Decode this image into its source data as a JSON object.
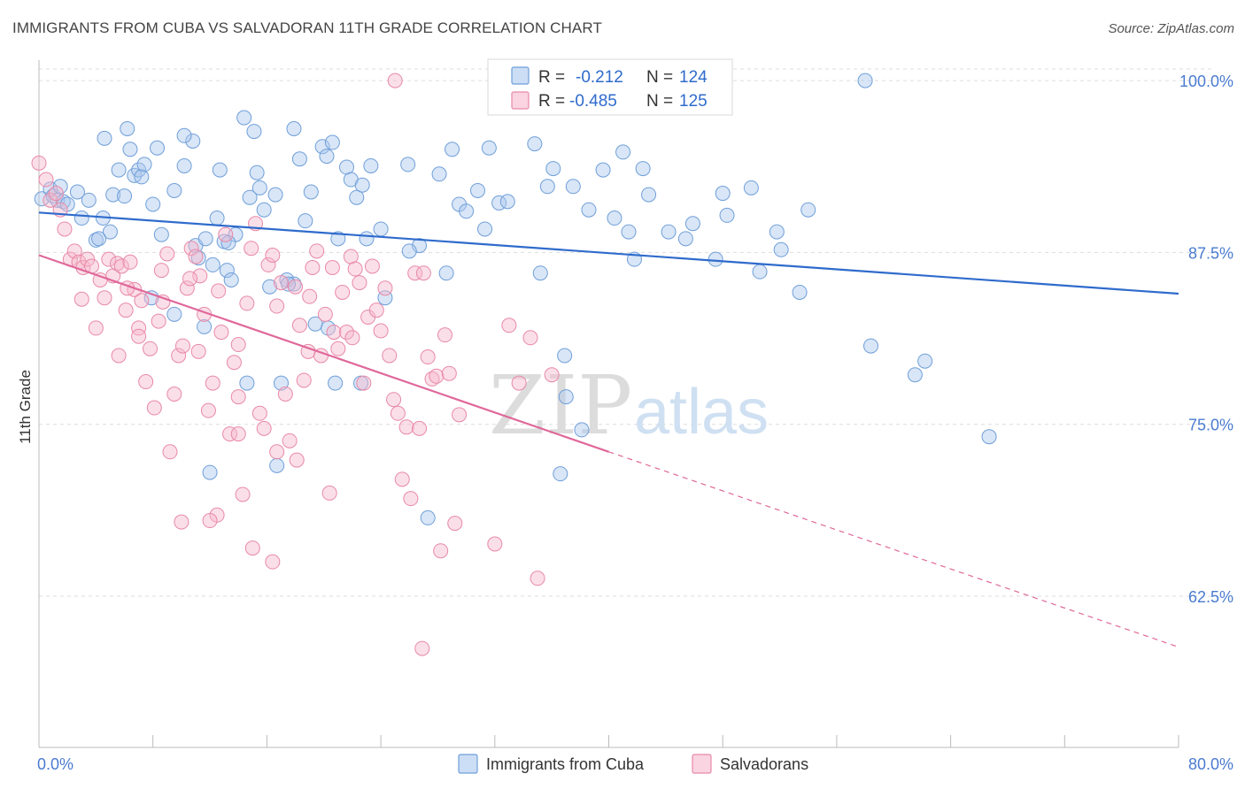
{
  "header": {
    "title": "IMMIGRANTS FROM CUBA VS SALVADORAN 11TH GRADE CORRELATION CHART",
    "source": "Source: ZipAtlas.com"
  },
  "watermark": {
    "zip": "ZIP",
    "atlas": "atlas"
  },
  "legend": {
    "rows": [
      {
        "r_label": "R =",
        "r_value": "-0.212",
        "n_label": "N =",
        "n_value": "124"
      },
      {
        "r_label": "R =",
        "r_value": "-0.485",
        "n_label": "N =",
        "n_value": "125"
      }
    ]
  },
  "bottom_legend": {
    "items": [
      "Immigrants from Cuba",
      "Salvadorans"
    ]
  },
  "colors": {
    "cuba_fill": "#aac8ee",
    "cuba_stroke": "#6f9fd9",
    "cuba_line": "#2f6bcc",
    "salv_fill": "#f6b8cb",
    "salv_stroke": "#e889a8",
    "salv_line": "#e0689a",
    "tick_text": "#4a7bd0",
    "grid": "#dddddd"
  },
  "chart_data": {
    "type": "scatter",
    "title": "IMMIGRANTS FROM CUBA VS SALVADORAN 11TH GRADE CORRELATION CHART",
    "xlabel": "",
    "ylabel": "11th Grade",
    "xlim": [
      0,
      80
    ],
    "ylim": [
      51.5,
      102
    ],
    "y_ticks": [
      {
        "value": 100,
        "label": "100.0%"
      },
      {
        "value": 87.5,
        "label": "87.5%"
      },
      {
        "value": 75,
        "label": "75.0%"
      },
      {
        "value": 62.5,
        "label": "62.5%"
      }
    ],
    "x_tick_labels": [
      {
        "value": 0,
        "label": "0.0%"
      },
      {
        "value": 80,
        "label": "80.0%"
      }
    ],
    "x_minor_ticks": [
      8,
      16,
      24,
      32,
      40,
      48,
      56,
      64,
      72,
      80
    ],
    "grid": true,
    "legend_position": "top-center",
    "series": [
      {
        "name": "Immigrants from Cuba",
        "r": -0.212,
        "n": 124,
        "trend": {
          "x0": 0,
          "y0": 90.4,
          "x1": 80,
          "y1": 84.5
        },
        "points": [
          [
            0.2,
            91.4
          ],
          [
            0.8,
            92.1
          ],
          [
            1.0,
            91.6
          ],
          [
            1.3,
            91.3
          ],
          [
            1.5,
            92.3
          ],
          [
            1.7,
            91.2
          ],
          [
            2.0,
            91.0
          ],
          [
            2.7,
            91.9
          ],
          [
            3.0,
            90.0
          ],
          [
            3.5,
            91.3
          ],
          [
            4.0,
            88.4
          ],
          [
            4.5,
            90.0
          ],
          [
            5.0,
            89.0
          ],
          [
            5.2,
            91.7
          ],
          [
            5.6,
            93.5
          ],
          [
            6.0,
            91.6
          ],
          [
            6.2,
            96.5
          ],
          [
            6.4,
            95.0
          ],
          [
            6.7,
            93.1
          ],
          [
            7.0,
            93.5
          ],
          [
            7.2,
            93.0
          ],
          [
            7.4,
            93.9
          ],
          [
            8.0,
            91.0
          ],
          [
            8.3,
            95.1
          ],
          [
            8.6,
            88.8
          ],
          [
            9.5,
            92.0
          ],
          [
            9.5,
            83.0
          ],
          [
            10.2,
            93.8
          ],
          [
            10.8,
            95.6
          ],
          [
            11.0,
            88.0
          ],
          [
            11.2,
            87.1
          ],
          [
            11.7,
            88.5
          ],
          [
            12.2,
            86.6
          ],
          [
            12.5,
            90.0
          ],
          [
            12.7,
            93.5
          ],
          [
            13.0,
            88.3
          ],
          [
            13.2,
            86.2
          ],
          [
            13.5,
            85.5
          ],
          [
            13.8,
            88.8
          ],
          [
            14.4,
            97.3
          ],
          [
            14.8,
            91.5
          ],
          [
            15.3,
            93.3
          ],
          [
            15.5,
            92.2
          ],
          [
            15.8,
            90.6
          ],
          [
            16.2,
            85.0
          ],
          [
            16.6,
            91.7
          ],
          [
            17.4,
            85.5
          ],
          [
            17.9,
            96.5
          ],
          [
            18.3,
            94.3
          ],
          [
            18.7,
            89.8
          ],
          [
            19.1,
            91.9
          ],
          [
            19.4,
            82.3
          ],
          [
            19.9,
            95.2
          ],
          [
            20.2,
            94.5
          ],
          [
            20.6,
            95.5
          ],
          [
            21.0,
            88.5
          ],
          [
            21.6,
            93.7
          ],
          [
            21.9,
            92.8
          ],
          [
            22.3,
            91.5
          ],
          [
            22.7,
            92.4
          ],
          [
            23.3,
            93.8
          ],
          [
            24.0,
            89.2
          ],
          [
            24.3,
            84.2
          ],
          [
            25.9,
            93.9
          ],
          [
            26.7,
            88.0
          ],
          [
            28.1,
            93.2
          ],
          [
            28.6,
            86.0
          ],
          [
            29.5,
            91.0
          ],
          [
            30.0,
            90.5
          ],
          [
            30.8,
            92.0
          ],
          [
            31.3,
            89.2
          ],
          [
            31.6,
            95.1
          ],
          [
            32.3,
            91.1
          ],
          [
            32.9,
            91.2
          ],
          [
            34.8,
            95.4
          ],
          [
            35.2,
            86.0
          ],
          [
            35.7,
            92.3
          ],
          [
            36.1,
            93.6
          ],
          [
            36.9,
            80.0
          ],
          [
            37.0,
            77.0
          ],
          [
            37.5,
            92.3
          ],
          [
            38.1,
            74.6
          ],
          [
            38.6,
            90.6
          ],
          [
            39.6,
            93.5
          ],
          [
            40.4,
            90.0
          ],
          [
            41.4,
            89.0
          ],
          [
            41.8,
            87.0
          ],
          [
            42.8,
            91.7
          ],
          [
            44.2,
            89.0
          ],
          [
            45.4,
            88.5
          ],
          [
            45.9,
            89.6
          ],
          [
            47.5,
            87.0
          ],
          [
            48.0,
            91.8
          ],
          [
            48.3,
            90.2
          ],
          [
            50.0,
            92.2
          ],
          [
            50.6,
            86.1
          ],
          [
            51.8,
            89.0
          ],
          [
            52.1,
            87.7
          ],
          [
            53.4,
            84.6
          ],
          [
            54.0,
            90.6
          ],
          [
            58.4,
            80.7
          ],
          [
            61.5,
            78.6
          ],
          [
            62.2,
            79.6
          ],
          [
            66.7,
            74.1
          ],
          [
            17.0,
            78.0
          ],
          [
            20.8,
            78.0
          ],
          [
            22.6,
            78.0
          ],
          [
            14.6,
            78.0
          ],
          [
            16.7,
            72.0
          ],
          [
            12.0,
            71.5
          ],
          [
            27.3,
            68.2
          ],
          [
            36.6,
            71.4
          ],
          [
            58.0,
            100.0
          ],
          [
            11.6,
            82.1
          ],
          [
            7.9,
            84.2
          ],
          [
            13.3,
            88.2
          ],
          [
            4.2,
            88.5
          ],
          [
            23.0,
            88.5
          ],
          [
            17.9,
            85.2
          ],
          [
            17.5,
            85.2
          ],
          [
            26.0,
            87.6
          ],
          [
            20.3,
            82.0
          ],
          [
            41.0,
            94.8
          ],
          [
            42.4,
            93.6
          ],
          [
            10.2,
            96.0
          ],
          [
            15.1,
            96.3
          ],
          [
            29.0,
            95.0
          ],
          [
            4.6,
            95.8
          ]
        ]
      },
      {
        "name": "Salvadorans",
        "r": -0.485,
        "n": 125,
        "trend": {
          "x0": 0,
          "y0": 87.3,
          "x1": 40,
          "y1": 73.0,
          "dash_x1": 80,
          "dash_y1": 58.8
        },
        "points": [
          [
            0.0,
            94.0
          ],
          [
            0.5,
            92.8
          ],
          [
            0.8,
            91.3
          ],
          [
            1.2,
            91.8
          ],
          [
            1.5,
            90.6
          ],
          [
            1.8,
            89.2
          ],
          [
            2.2,
            87.0
          ],
          [
            2.5,
            87.6
          ],
          [
            2.8,
            86.8
          ],
          [
            3.1,
            86.4
          ],
          [
            3.4,
            87.0
          ],
          [
            3.7,
            86.5
          ],
          [
            4.0,
            82.0
          ],
          [
            4.3,
            85.5
          ],
          [
            4.6,
            84.2
          ],
          [
            4.9,
            87.0
          ],
          [
            5.2,
            85.8
          ],
          [
            5.5,
            86.7
          ],
          [
            5.8,
            86.5
          ],
          [
            6.1,
            83.3
          ],
          [
            6.4,
            86.8
          ],
          [
            6.7,
            84.8
          ],
          [
            7.0,
            82.0
          ],
          [
            7.2,
            84.0
          ],
          [
            7.5,
            78.1
          ],
          [
            7.8,
            80.5
          ],
          [
            8.1,
            76.2
          ],
          [
            8.4,
            82.5
          ],
          [
            8.7,
            83.9
          ],
          [
            9.0,
            87.4
          ],
          [
            9.2,
            73.0
          ],
          [
            9.5,
            77.2
          ],
          [
            9.8,
            80.0
          ],
          [
            10.1,
            80.7
          ],
          [
            10.4,
            84.9
          ],
          [
            10.7,
            87.8
          ],
          [
            11.0,
            87.2
          ],
          [
            11.3,
            85.8
          ],
          [
            11.6,
            83.0
          ],
          [
            11.9,
            76.0
          ],
          [
            12.2,
            78.0
          ],
          [
            12.5,
            68.4
          ],
          [
            12.8,
            81.7
          ],
          [
            13.1,
            88.8
          ],
          [
            13.4,
            74.3
          ],
          [
            13.7,
            79.5
          ],
          [
            14.0,
            80.8
          ],
          [
            14.3,
            69.9
          ],
          [
            14.6,
            83.8
          ],
          [
            14.9,
            87.8
          ],
          [
            15.2,
            89.6
          ],
          [
            15.5,
            75.8
          ],
          [
            15.8,
            74.7
          ],
          [
            16.1,
            86.6
          ],
          [
            16.4,
            87.3
          ],
          [
            16.7,
            83.6
          ],
          [
            17.0,
            85.3
          ],
          [
            17.3,
            77.2
          ],
          [
            17.6,
            73.8
          ],
          [
            18.0,
            85.0
          ],
          [
            18.3,
            82.2
          ],
          [
            18.6,
            78.2
          ],
          [
            18.9,
            80.3
          ],
          [
            19.2,
            86.4
          ],
          [
            19.5,
            87.6
          ],
          [
            19.8,
            80.0
          ],
          [
            20.1,
            83.0
          ],
          [
            20.4,
            70.0
          ],
          [
            20.7,
            81.7
          ],
          [
            21.0,
            80.5
          ],
          [
            21.3,
            84.6
          ],
          [
            21.6,
            81.7
          ],
          [
            21.9,
            87.2
          ],
          [
            22.2,
            86.3
          ],
          [
            22.5,
            85.3
          ],
          [
            22.8,
            78.0
          ],
          [
            23.1,
            82.8
          ],
          [
            23.4,
            86.5
          ],
          [
            23.7,
            83.3
          ],
          [
            24.0,
            81.8
          ],
          [
            24.3,
            84.9
          ],
          [
            24.6,
            80.0
          ],
          [
            24.9,
            76.8
          ],
          [
            25.2,
            75.8
          ],
          [
            25.5,
            71.0
          ],
          [
            25.8,
            74.8
          ],
          [
            26.1,
            69.6
          ],
          [
            26.4,
            86.0
          ],
          [
            26.7,
            74.7
          ],
          [
            27.0,
            86.0
          ],
          [
            27.3,
            79.9
          ],
          [
            27.6,
            78.3
          ],
          [
            27.9,
            78.5
          ],
          [
            28.2,
            65.8
          ],
          [
            28.5,
            81.5
          ],
          [
            28.8,
            78.7
          ],
          [
            29.2,
            67.8
          ],
          [
            29.5,
            75.7
          ],
          [
            32.0,
            66.3
          ],
          [
            33.0,
            82.2
          ],
          [
            33.7,
            78.0
          ],
          [
            34.5,
            81.3
          ],
          [
            35.0,
            63.8
          ],
          [
            36.0,
            78.6
          ],
          [
            12.0,
            68.0
          ],
          [
            15.0,
            66.0
          ],
          [
            16.4,
            65.0
          ],
          [
            26.9,
            58.7
          ],
          [
            14.0,
            74.3
          ],
          [
            16.7,
            73.0
          ],
          [
            10.0,
            67.9
          ],
          [
            25.0,
            100.0
          ],
          [
            3.0,
            84.1
          ],
          [
            5.6,
            80.0
          ],
          [
            7.0,
            81.4
          ],
          [
            12.6,
            84.7
          ],
          [
            10.6,
            85.6
          ],
          [
            18.1,
            72.4
          ],
          [
            20.6,
            86.4
          ],
          [
            6.2,
            84.9
          ],
          [
            8.6,
            86.2
          ],
          [
            11.2,
            80.3
          ],
          [
            14.0,
            77.0
          ],
          [
            19.0,
            84.3
          ],
          [
            22.0,
            81.3
          ]
        ]
      }
    ]
  }
}
